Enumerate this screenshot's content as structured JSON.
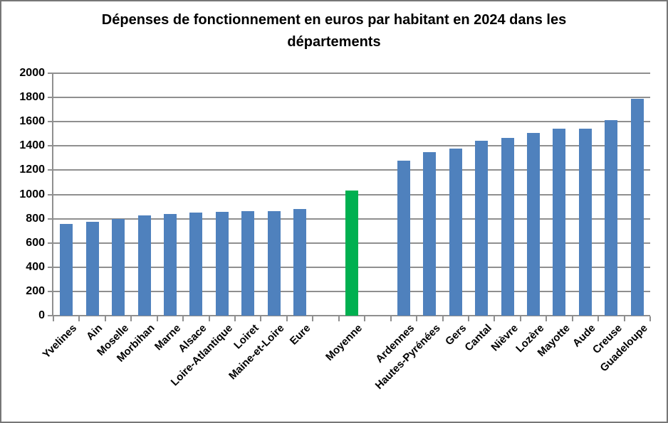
{
  "chart_data": {
    "type": "bar",
    "title": "Dépenses de fonctionnement en euros par habitant en 2024 dans les départements",
    "title_lines": [
      "Dépenses de fonctionnement en euros par habitant en 2024 dans les",
      "départements"
    ],
    "xlabel": "",
    "ylabel": "",
    "ylim": [
      0,
      2000
    ],
    "ytick_step": 200,
    "ytick_labels": [
      "0",
      "200",
      "400",
      "600",
      "800",
      "1000",
      "1200",
      "1400",
      "1600",
      "1800",
      "2000"
    ],
    "grid": true,
    "legend": false,
    "x_labels_rotation_deg": 45,
    "colors": {
      "bar_default": "#4F81BD",
      "bar_highlight": "#00B050",
      "gridline": "#8F8F8F",
      "axis": "#8F8F8F",
      "text": "#000000",
      "frame_border": "#767676"
    },
    "points": [
      {
        "label": "Yvelines",
        "value": 755
      },
      {
        "label": "Ain",
        "value": 775
      },
      {
        "label": "Moselle",
        "value": 795
      },
      {
        "label": "Morbihan",
        "value": 825
      },
      {
        "label": "Marne",
        "value": 840
      },
      {
        "label": "Alsace",
        "value": 850
      },
      {
        "label": "Loire-Atlantique",
        "value": 855
      },
      {
        "label": "Loiret",
        "value": 860
      },
      {
        "label": "Maine-et-Loire",
        "value": 865
      },
      {
        "label": "Eure",
        "value": 880
      },
      {
        "label": "",
        "value": null
      },
      {
        "label": "Moyenne",
        "value": 1035,
        "highlight": true
      },
      {
        "label": "",
        "value": null
      },
      {
        "label": "Ardennes",
        "value": 1280
      },
      {
        "label": "Hautes-Pyrénées",
        "value": 1350
      },
      {
        "label": "Gers",
        "value": 1380
      },
      {
        "label": "Cantal",
        "value": 1445
      },
      {
        "label": "Nièvre",
        "value": 1465
      },
      {
        "label": "Lozère",
        "value": 1505
      },
      {
        "label": "Mayotte",
        "value": 1540
      },
      {
        "label": "Aude",
        "value": 1545
      },
      {
        "label": "Creuse",
        "value": 1610
      },
      {
        "label": "Guadeloupe",
        "value": 1790
      }
    ]
  }
}
